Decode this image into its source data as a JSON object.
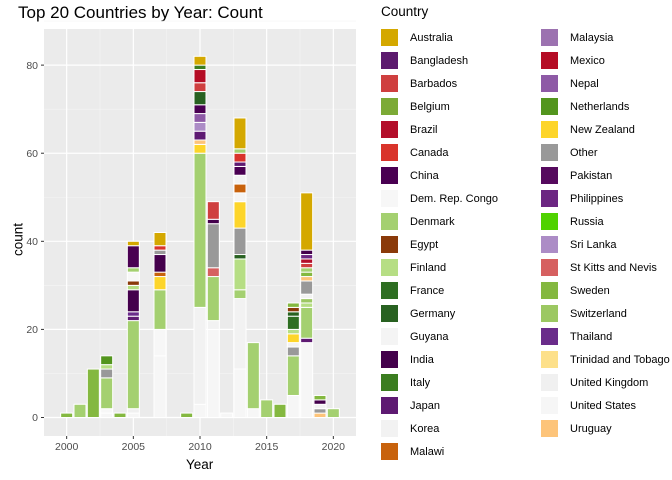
{
  "chart_data": {
    "type": "bar",
    "title": "Top 20 Countries by Year: Count",
    "xlabel": "Year",
    "ylabel": "count",
    "legend_title": "Country",
    "legend_position": "right",
    "grid": true,
    "xlim": [
      1998.3,
      2021.7
    ],
    "ylim": [
      -4.2,
      88.2
    ],
    "x_ticks": [
      2000,
      2005,
      2010,
      2015,
      2020
    ],
    "y_ticks": [
      0,
      20,
      40,
      60,
      80
    ],
    "countries": [
      {
        "name": "Australia",
        "color": "#d4a800"
      },
      {
        "name": "Bangladesh",
        "color": "#5c1a6e"
      },
      {
        "name": "Barbados",
        "color": "#cf3f3f"
      },
      {
        "name": "Belgium",
        "color": "#7caa36"
      },
      {
        "name": "Brazil",
        "color": "#b30e2a"
      },
      {
        "name": "Canada",
        "color": "#d9342b"
      },
      {
        "name": "China",
        "color": "#4a0052"
      },
      {
        "name": "Dem. Rep. Congo",
        "color": "#f7f7f7"
      },
      {
        "name": "Denmark",
        "color": "#a4d070"
      },
      {
        "name": "Egypt",
        "color": "#8a3a0a"
      },
      {
        "name": "Finland",
        "color": "#b6de84"
      },
      {
        "name": "France",
        "color": "#2e6e22"
      },
      {
        "name": "Germany",
        "color": "#286121"
      },
      {
        "name": "Guyana",
        "color": "#f4f4f4"
      },
      {
        "name": "India",
        "color": "#44004c"
      },
      {
        "name": "Italy",
        "color": "#3b7d20"
      },
      {
        "name": "Japan",
        "color": "#5e1a72"
      },
      {
        "name": "Korea",
        "color": "#f2f2f2"
      },
      {
        "name": "Malawi",
        "color": "#c8620c"
      },
      {
        "name": "Malaysia",
        "color": "#9c72b0"
      },
      {
        "name": "Mexico",
        "color": "#b50d25"
      },
      {
        "name": "Nepal",
        "color": "#8e5aa6"
      },
      {
        "name": "Netherlands",
        "color": "#53951e"
      },
      {
        "name": "New Zealand",
        "color": "#fdd52a"
      },
      {
        "name": "Other",
        "color": "#999999"
      },
      {
        "name": "Pakistan",
        "color": "#560a5e"
      },
      {
        "name": "Philippines",
        "color": "#6c2682"
      },
      {
        "name": "Russia",
        "color": "#4fd200"
      },
      {
        "name": "Sri Lanka",
        "color": "#ac8cc6"
      },
      {
        "name": "St Kitts and Nevis",
        "color": "#d66060"
      },
      {
        "name": "Sweden",
        "color": "#84b840"
      },
      {
        "name": "Switzerland",
        "color": "#9cc862"
      },
      {
        "name": "Thailand",
        "color": "#6a2c8a"
      },
      {
        "name": "Trinidad and Tobago",
        "color": "#fde08a"
      },
      {
        "name": "United Kingdom",
        "color": "#f0f0f0"
      },
      {
        "name": "United States",
        "color": "#f6f6f6"
      },
      {
        "name": "Uruguay",
        "color": "#fdc47a"
      }
    ],
    "bars": [
      {
        "year": 2000,
        "segments": [
          {
            "country": "Sweden",
            "value": 1
          }
        ]
      },
      {
        "year": 2001,
        "segments": [
          {
            "country": "Denmark",
            "value": 3
          }
        ]
      },
      {
        "year": 2002,
        "segments": [
          {
            "country": "Sweden",
            "value": 11
          }
        ]
      },
      {
        "year": 2003,
        "segments": [
          {
            "country": "United States",
            "value": 1
          },
          {
            "country": "Dem. Rep. Congo",
            "value": 1
          },
          {
            "country": "Denmark",
            "value": 7
          },
          {
            "country": "Other",
            "value": 2
          },
          {
            "country": "Finland",
            "value": 1
          },
          {
            "country": "Netherlands",
            "value": 2
          }
        ]
      },
      {
        "year": 2004,
        "segments": [
          {
            "country": "Sweden",
            "value": 1
          }
        ]
      },
      {
        "year": 2005,
        "segments": [
          {
            "country": "United States",
            "value": 1
          },
          {
            "country": "United Kingdom",
            "value": 1
          },
          {
            "country": "Denmark",
            "value": 20
          },
          {
            "country": "Japan",
            "value": 1
          },
          {
            "country": "Thailand",
            "value": 1
          },
          {
            "country": "India",
            "value": 5
          },
          {
            "country": "Finland",
            "value": 1
          },
          {
            "country": "Egypt",
            "value": 1
          },
          {
            "country": "Dem. Rep. Congo",
            "value": 2
          },
          {
            "country": "Denmark",
            "value": 1
          },
          {
            "country": "China",
            "value": 5
          },
          {
            "country": "Australia",
            "value": 1
          }
        ]
      },
      {
        "year": 2007,
        "segments": [
          {
            "country": "United States",
            "value": 14
          },
          {
            "country": "Dem. Rep. Congo",
            "value": 6
          },
          {
            "country": "Denmark",
            "value": 9
          },
          {
            "country": "New Zealand",
            "value": 3
          },
          {
            "country": "Malawi",
            "value": 1
          },
          {
            "country": "India",
            "value": 4
          },
          {
            "country": "Other",
            "value": 1
          },
          {
            "country": "Canada",
            "value": 1
          },
          {
            "country": "Australia",
            "value": 3
          }
        ]
      },
      {
        "year": 2009,
        "segments": [
          {
            "country": "Sweden",
            "value": 1
          }
        ]
      },
      {
        "year": 2010,
        "segments": [
          {
            "country": "United States",
            "value": 3
          },
          {
            "country": "Korea",
            "value": 22
          },
          {
            "country": "Denmark",
            "value": 35
          },
          {
            "country": "New Zealand",
            "value": 2
          },
          {
            "country": "Uruguay",
            "value": 1
          },
          {
            "country": "Japan",
            "value": 2
          },
          {
            "country": "Sri Lanka",
            "value": 2
          },
          {
            "country": "Nepal",
            "value": 2
          },
          {
            "country": "China",
            "value": 2
          },
          {
            "country": "Germany",
            "value": 3
          },
          {
            "country": "Barbados",
            "value": 2
          },
          {
            "country": "Mexico",
            "value": 3
          },
          {
            "country": "Italy",
            "value": 1
          },
          {
            "country": "Australia",
            "value": 2
          }
        ]
      },
      {
        "year": 2011,
        "segments": [
          {
            "country": "United States",
            "value": 20
          },
          {
            "country": "Korea",
            "value": 2
          },
          {
            "country": "Denmark",
            "value": 10
          },
          {
            "country": "St Kitts and Nevis",
            "value": 2
          },
          {
            "country": "Other",
            "value": 10
          },
          {
            "country": "India",
            "value": 1
          },
          {
            "country": "Barbados",
            "value": 4
          }
        ]
      },
      {
        "year": 2012,
        "segments": [
          {
            "country": "United States",
            "value": 1
          }
        ]
      },
      {
        "year": 2013,
        "segments": [
          {
            "country": "United States",
            "value": 11
          },
          {
            "country": "Korea",
            "value": 16
          },
          {
            "country": "Denmark",
            "value": 2
          },
          {
            "country": "Finland",
            "value": 7
          },
          {
            "country": "Germany",
            "value": 1
          },
          {
            "country": "Other",
            "value": 6
          },
          {
            "country": "New Zealand",
            "value": 6
          },
          {
            "country": "Guyana",
            "value": 2
          },
          {
            "country": "Malawi",
            "value": 2
          },
          {
            "country": "Korea",
            "value": 2
          },
          {
            "country": "China",
            "value": 2
          },
          {
            "country": "Japan",
            "value": 1
          },
          {
            "country": "Canada",
            "value": 2
          },
          {
            "country": "Denmark",
            "value": 1
          },
          {
            "country": "Australia",
            "value": 7
          }
        ]
      },
      {
        "year": 2014,
        "segments": [
          {
            "country": "United States",
            "value": 2
          },
          {
            "country": "Denmark",
            "value": 15
          }
        ]
      },
      {
        "year": 2015,
        "segments": [
          {
            "country": "Denmark",
            "value": 4
          }
        ]
      },
      {
        "year": 2016,
        "segments": [
          {
            "country": "Sweden",
            "value": 3
          }
        ]
      },
      {
        "year": 2017,
        "segments": [
          {
            "country": "United States",
            "value": 5
          },
          {
            "country": "Denmark",
            "value": 9
          },
          {
            "country": "Other",
            "value": 2
          },
          {
            "country": "Korea",
            "value": 1
          },
          {
            "country": "New Zealand",
            "value": 2
          },
          {
            "country": "Finland",
            "value": 1
          },
          {
            "country": "France",
            "value": 3
          },
          {
            "country": "Germany",
            "value": 1
          },
          {
            "country": "Egypt",
            "value": 1
          },
          {
            "country": "Sweden",
            "value": 1
          }
        ]
      },
      {
        "year": 2018,
        "segments": [
          {
            "country": "United States",
            "value": 17
          },
          {
            "country": "Japan",
            "value": 1
          },
          {
            "country": "Denmark",
            "value": 7
          },
          {
            "country": "Finland",
            "value": 1
          },
          {
            "country": "Switzerland",
            "value": 1
          },
          {
            "country": "Korea",
            "value": 1
          },
          {
            "country": "Other",
            "value": 3
          },
          {
            "country": "Uruguay",
            "value": 1
          },
          {
            "country": "Sweden",
            "value": 1
          },
          {
            "country": "Denmark",
            "value": 1
          },
          {
            "country": "Barbados",
            "value": 1
          },
          {
            "country": "Brazil",
            "value": 1
          },
          {
            "country": "Philippines",
            "value": 1
          },
          {
            "country": "India",
            "value": 1
          },
          {
            "country": "Australia",
            "value": 13
          }
        ]
      },
      {
        "year": 2019,
        "segments": [
          {
            "country": "Uruguay",
            "value": 1
          },
          {
            "country": "Other",
            "value": 1
          },
          {
            "country": "Korea",
            "value": 1
          },
          {
            "country": "India",
            "value": 1
          },
          {
            "country": "Sweden",
            "value": 1
          }
        ]
      },
      {
        "year": 2020,
        "segments": [
          {
            "country": "Denmark",
            "value": 2
          }
        ]
      }
    ]
  }
}
